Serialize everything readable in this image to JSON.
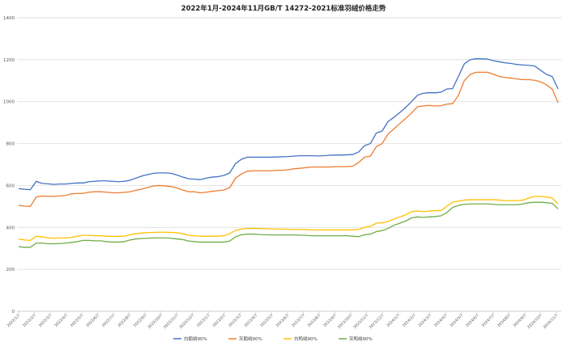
{
  "chart_data": {
    "type": "line",
    "title": "2022年1月-2024年11月GB/T 14272-2021标准羽绒价格走势",
    "ylim": [
      0,
      1400
    ],
    "yticks": [
      0,
      200,
      400,
      600,
      800,
      1000,
      1200,
      1400
    ],
    "grid": true,
    "legend_position": "bottom",
    "x_tick_labels": [
      "2022/1/7",
      "2022/2/7",
      "2022/3/7",
      "2022/4/7",
      "2022/5/7",
      "2022/6/7",
      "2022/7/7",
      "2022/8/7",
      "2022/9/7",
      "2022/10/7",
      "2022/11/7",
      "2022/12/7",
      "2023/1/7",
      "2023/2/7",
      "2023/3/7",
      "2023/4/7",
      "2023/5/7",
      "2023/6/7",
      "2023/7/7",
      "2023/8/7",
      "2023/9/7",
      "2023/10/7",
      "2023/11/7",
      "2023/12/7",
      "2024/1/7",
      "2024/2/7",
      "2024/3/7",
      "2024/4/7",
      "2024/5/7",
      "2024/6/7",
      "2024/7/7",
      "2024/8/7",
      "2024/9/7",
      "2024/10/7",
      "2024/11/7"
    ],
    "series": [
      {
        "name": "白鹅绒90%",
        "color": "#4472C4",
        "values": [
          585,
          582,
          580,
          620,
          610,
          608,
          605,
          607,
          607,
          610,
          612,
          612,
          618,
          620,
          622,
          622,
          620,
          618,
          620,
          625,
          635,
          645,
          652,
          658,
          660,
          660,
          658,
          650,
          640,
          632,
          630,
          628,
          635,
          640,
          642,
          648,
          660,
          705,
          725,
          735,
          735,
          735,
          735,
          735,
          736,
          737,
          738,
          740,
          742,
          742,
          742,
          741,
          742,
          744,
          745,
          745,
          746,
          748,
          760,
          790,
          800,
          850,
          860,
          905,
          925,
          948,
          972,
          1000,
          1030,
          1040,
          1043,
          1042,
          1045,
          1060,
          1062,
          1120,
          1180,
          1200,
          1205,
          1204,
          1203,
          1195,
          1190,
          1185,
          1182,
          1177,
          1175,
          1173,
          1170,
          1150,
          1130,
          1120,
          1060
        ]
      },
      {
        "name": "灰鹅绒90%",
        "color": "#ED7D31",
        "values": [
          505,
          502,
          500,
          545,
          550,
          548,
          548,
          550,
          552,
          560,
          562,
          562,
          568,
          570,
          570,
          568,
          565,
          565,
          567,
          570,
          577,
          583,
          590,
          598,
          600,
          598,
          595,
          588,
          578,
          570,
          570,
          565,
          568,
          572,
          575,
          578,
          590,
          635,
          655,
          668,
          670,
          670,
          670,
          670,
          672,
          673,
          675,
          680,
          682,
          685,
          688,
          688,
          688,
          688,
          690,
          690,
          690,
          692,
          710,
          735,
          740,
          785,
          800,
          845,
          870,
          895,
          920,
          945,
          975,
          980,
          982,
          980,
          980,
          988,
          990,
          1030,
          1100,
          1130,
          1140,
          1140,
          1140,
          1130,
          1120,
          1115,
          1112,
          1108,
          1105,
          1105,
          1102,
          1095,
          1080,
          1060,
          995
        ]
      },
      {
        "name": "白鸭绒90%",
        "color": "#FFC000",
        "values": [
          345,
          340,
          338,
          358,
          355,
          350,
          348,
          350,
          350,
          352,
          358,
          362,
          362,
          360,
          360,
          358,
          357,
          357,
          358,
          365,
          370,
          373,
          375,
          376,
          377,
          377,
          376,
          374,
          370,
          362,
          360,
          358,
          358,
          358,
          358,
          360,
          370,
          385,
          392,
          395,
          395,
          395,
          394,
          393,
          392,
          392,
          391,
          390,
          390,
          390,
          388,
          388,
          388,
          388,
          388,
          388,
          388,
          388,
          390,
          400,
          405,
          420,
          422,
          428,
          440,
          450,
          460,
          475,
          478,
          475,
          478,
          480,
          480,
          500,
          520,
          525,
          530,
          532,
          532,
          532,
          532,
          532,
          530,
          528,
          528,
          528,
          530,
          540,
          548,
          548,
          545,
          540,
          512
        ]
      },
      {
        "name": "灰鸭绒90%",
        "color": "#70AD47",
        "values": [
          308,
          305,
          305,
          325,
          325,
          322,
          322,
          323,
          325,
          328,
          332,
          338,
          338,
          336,
          336,
          332,
          330,
          330,
          332,
          340,
          345,
          347,
          348,
          350,
          350,
          350,
          348,
          345,
          342,
          335,
          332,
          330,
          330,
          330,
          330,
          330,
          335,
          355,
          365,
          368,
          368,
          366,
          365,
          364,
          364,
          364,
          364,
          364,
          363,
          362,
          360,
          360,
          360,
          360,
          360,
          360,
          360,
          358,
          356,
          365,
          368,
          380,
          385,
          395,
          410,
          420,
          430,
          445,
          450,
          448,
          450,
          452,
          455,
          470,
          495,
          505,
          510,
          512,
          512,
          512,
          512,
          510,
          508,
          508,
          508,
          508,
          512,
          518,
          520,
          520,
          518,
          515,
          488
        ]
      }
    ]
  }
}
